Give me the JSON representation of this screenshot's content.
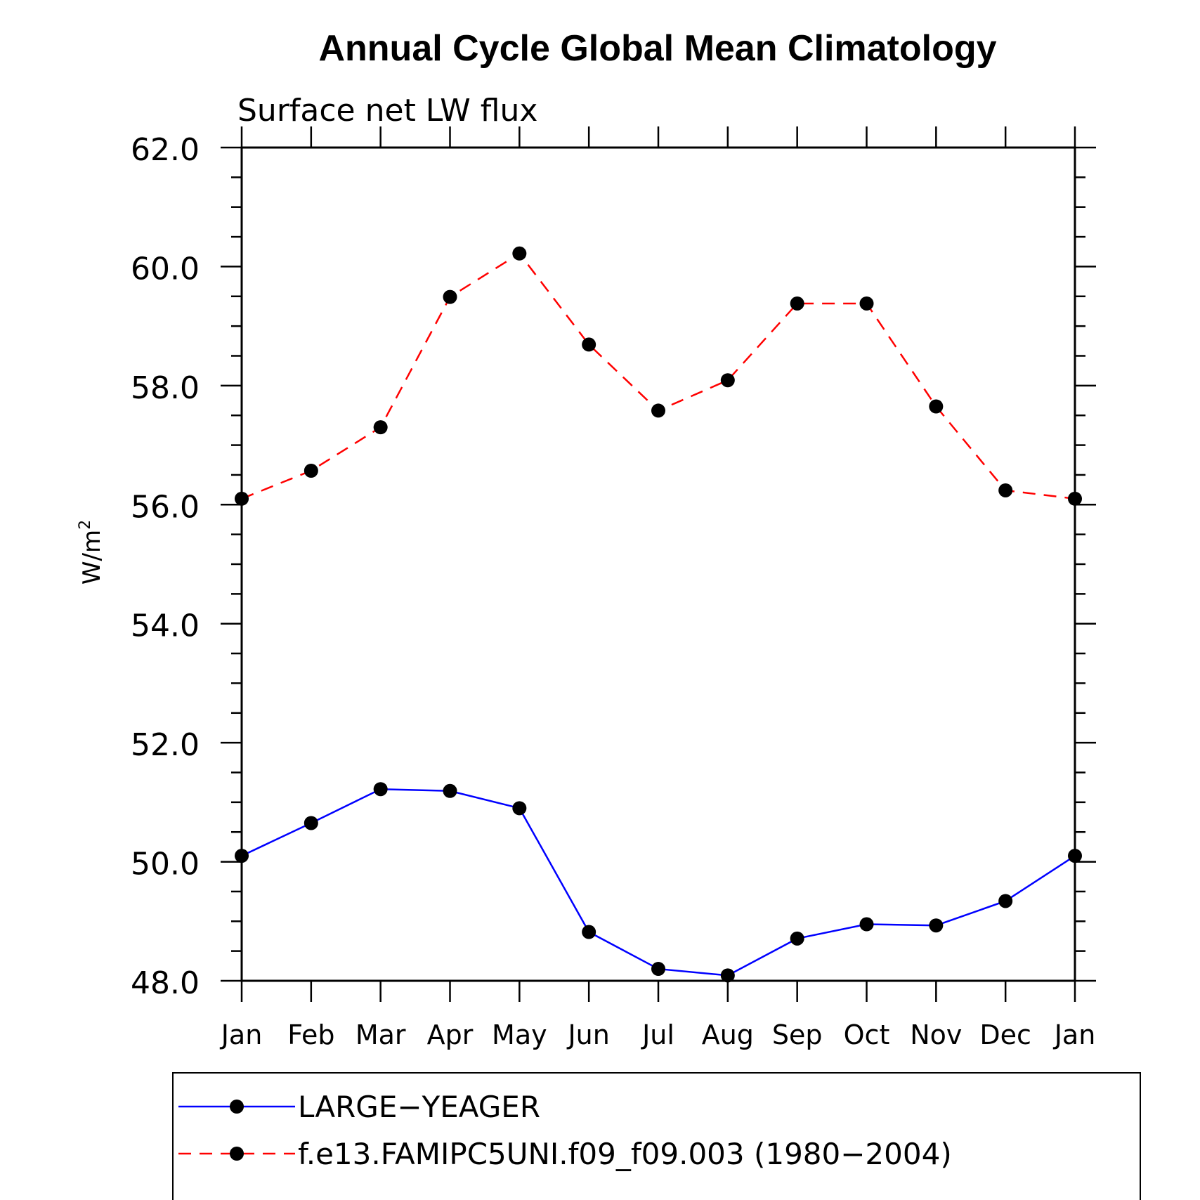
{
  "chart_data": {
    "type": "line",
    "title": "Annual Cycle Global Mean Climatology",
    "subtitle": "Surface net LW flux",
    "ylabel": "W/m",
    "ylabel_sup": "2",
    "xlabel": "",
    "categories": [
      "Jan",
      "Feb",
      "Mar",
      "Apr",
      "May",
      "Jun",
      "Jul",
      "Aug",
      "Sep",
      "Oct",
      "Nov",
      "Dec",
      "Jan"
    ],
    "ylim": [
      48.0,
      62.0
    ],
    "yticks": [
      "48.0",
      "50.0",
      "52.0",
      "54.0",
      "56.0",
      "58.0",
      "60.0",
      "62.0"
    ],
    "series": [
      {
        "name": "LARGE−YEAGER",
        "color": "#0000ff",
        "dash": "solid",
        "values": [
          50.1,
          50.65,
          51.22,
          51.19,
          50.9,
          48.82,
          48.2,
          48.09,
          48.71,
          48.95,
          48.93,
          49.34,
          50.1
        ]
      },
      {
        "name": "f.e13.FAMIPC5UNI.f09_f09.003 (1980−2004)",
        "color": "#ff0000",
        "dash": "dashed",
        "values": [
          56.1,
          56.57,
          57.3,
          59.49,
          60.22,
          58.69,
          57.58,
          58.09,
          59.38,
          59.38,
          57.65,
          56.24,
          56.1
        ]
      }
    ],
    "grid": false,
    "legend_position": "bottom"
  }
}
